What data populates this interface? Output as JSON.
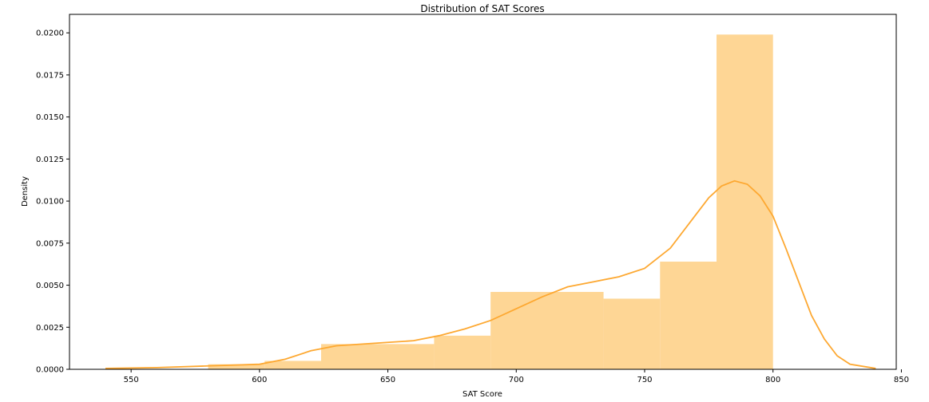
{
  "chart_data": {
    "type": "histogram",
    "title": "Distribution of SAT Scores",
    "xlabel": "SAT Score",
    "ylabel": "Density",
    "xlim": [
      526,
      848
    ],
    "ylim": [
      0,
      0.0211
    ],
    "xticks": [
      550,
      600,
      650,
      700,
      750,
      800,
      850
    ],
    "xtick_labels": [
      "550",
      "600",
      "650",
      "700",
      "750",
      "800",
      "850"
    ],
    "yticks": [
      0,
      0.0025,
      0.005,
      0.0075,
      0.01,
      0.0125,
      0.015,
      0.0175,
      0.02
    ],
    "ytick_labels": [
      "0.0000",
      "0.0025",
      "0.0050",
      "0.0075",
      "0.0100",
      "0.0125",
      "0.0150",
      "0.0175",
      "0.0200"
    ],
    "bins": [
      {
        "x0": 580.0,
        "x1": 602.0,
        "density": 0.0003
      },
      {
        "x0": 602.0,
        "x1": 624.0,
        "density": 0.0005
      },
      {
        "x0": 624.0,
        "x1": 668.0,
        "density": 0.0015
      },
      {
        "x0": 668.0,
        "x1": 690.0,
        "density": 0.002
      },
      {
        "x0": 690.0,
        "x1": 734.0,
        "density": 0.0046
      },
      {
        "x0": 734.0,
        "x1": 756.0,
        "density": 0.0042
      },
      {
        "x0": 756.0,
        "x1": 778.0,
        "density": 0.0064
      },
      {
        "x0": 778.0,
        "x1": 800.0,
        "density": 0.0199
      }
    ],
    "kde": {
      "x": [
        540,
        560,
        580,
        600,
        610,
        620,
        630,
        640,
        650,
        660,
        670,
        680,
        690,
        700,
        710,
        720,
        730,
        740,
        750,
        760,
        770,
        775,
        780,
        785,
        790,
        795,
        800,
        805,
        810,
        815,
        820,
        825,
        830,
        840
      ],
      "y": [
        5e-05,
        0.0001,
        0.0002,
        0.0003,
        0.0006,
        0.0011,
        0.0014,
        0.0015,
        0.0016,
        0.0017,
        0.002,
        0.0024,
        0.0029,
        0.0036,
        0.0043,
        0.0049,
        0.0052,
        0.0055,
        0.006,
        0.0072,
        0.0092,
        0.0102,
        0.0109,
        0.0112,
        0.011,
        0.0103,
        0.0091,
        0.0072,
        0.0052,
        0.0032,
        0.0018,
        0.0008,
        0.0003,
        5e-05
      ]
    },
    "grid": false,
    "colors": {
      "bar": "#fed695",
      "kde": "#fda831"
    }
  }
}
